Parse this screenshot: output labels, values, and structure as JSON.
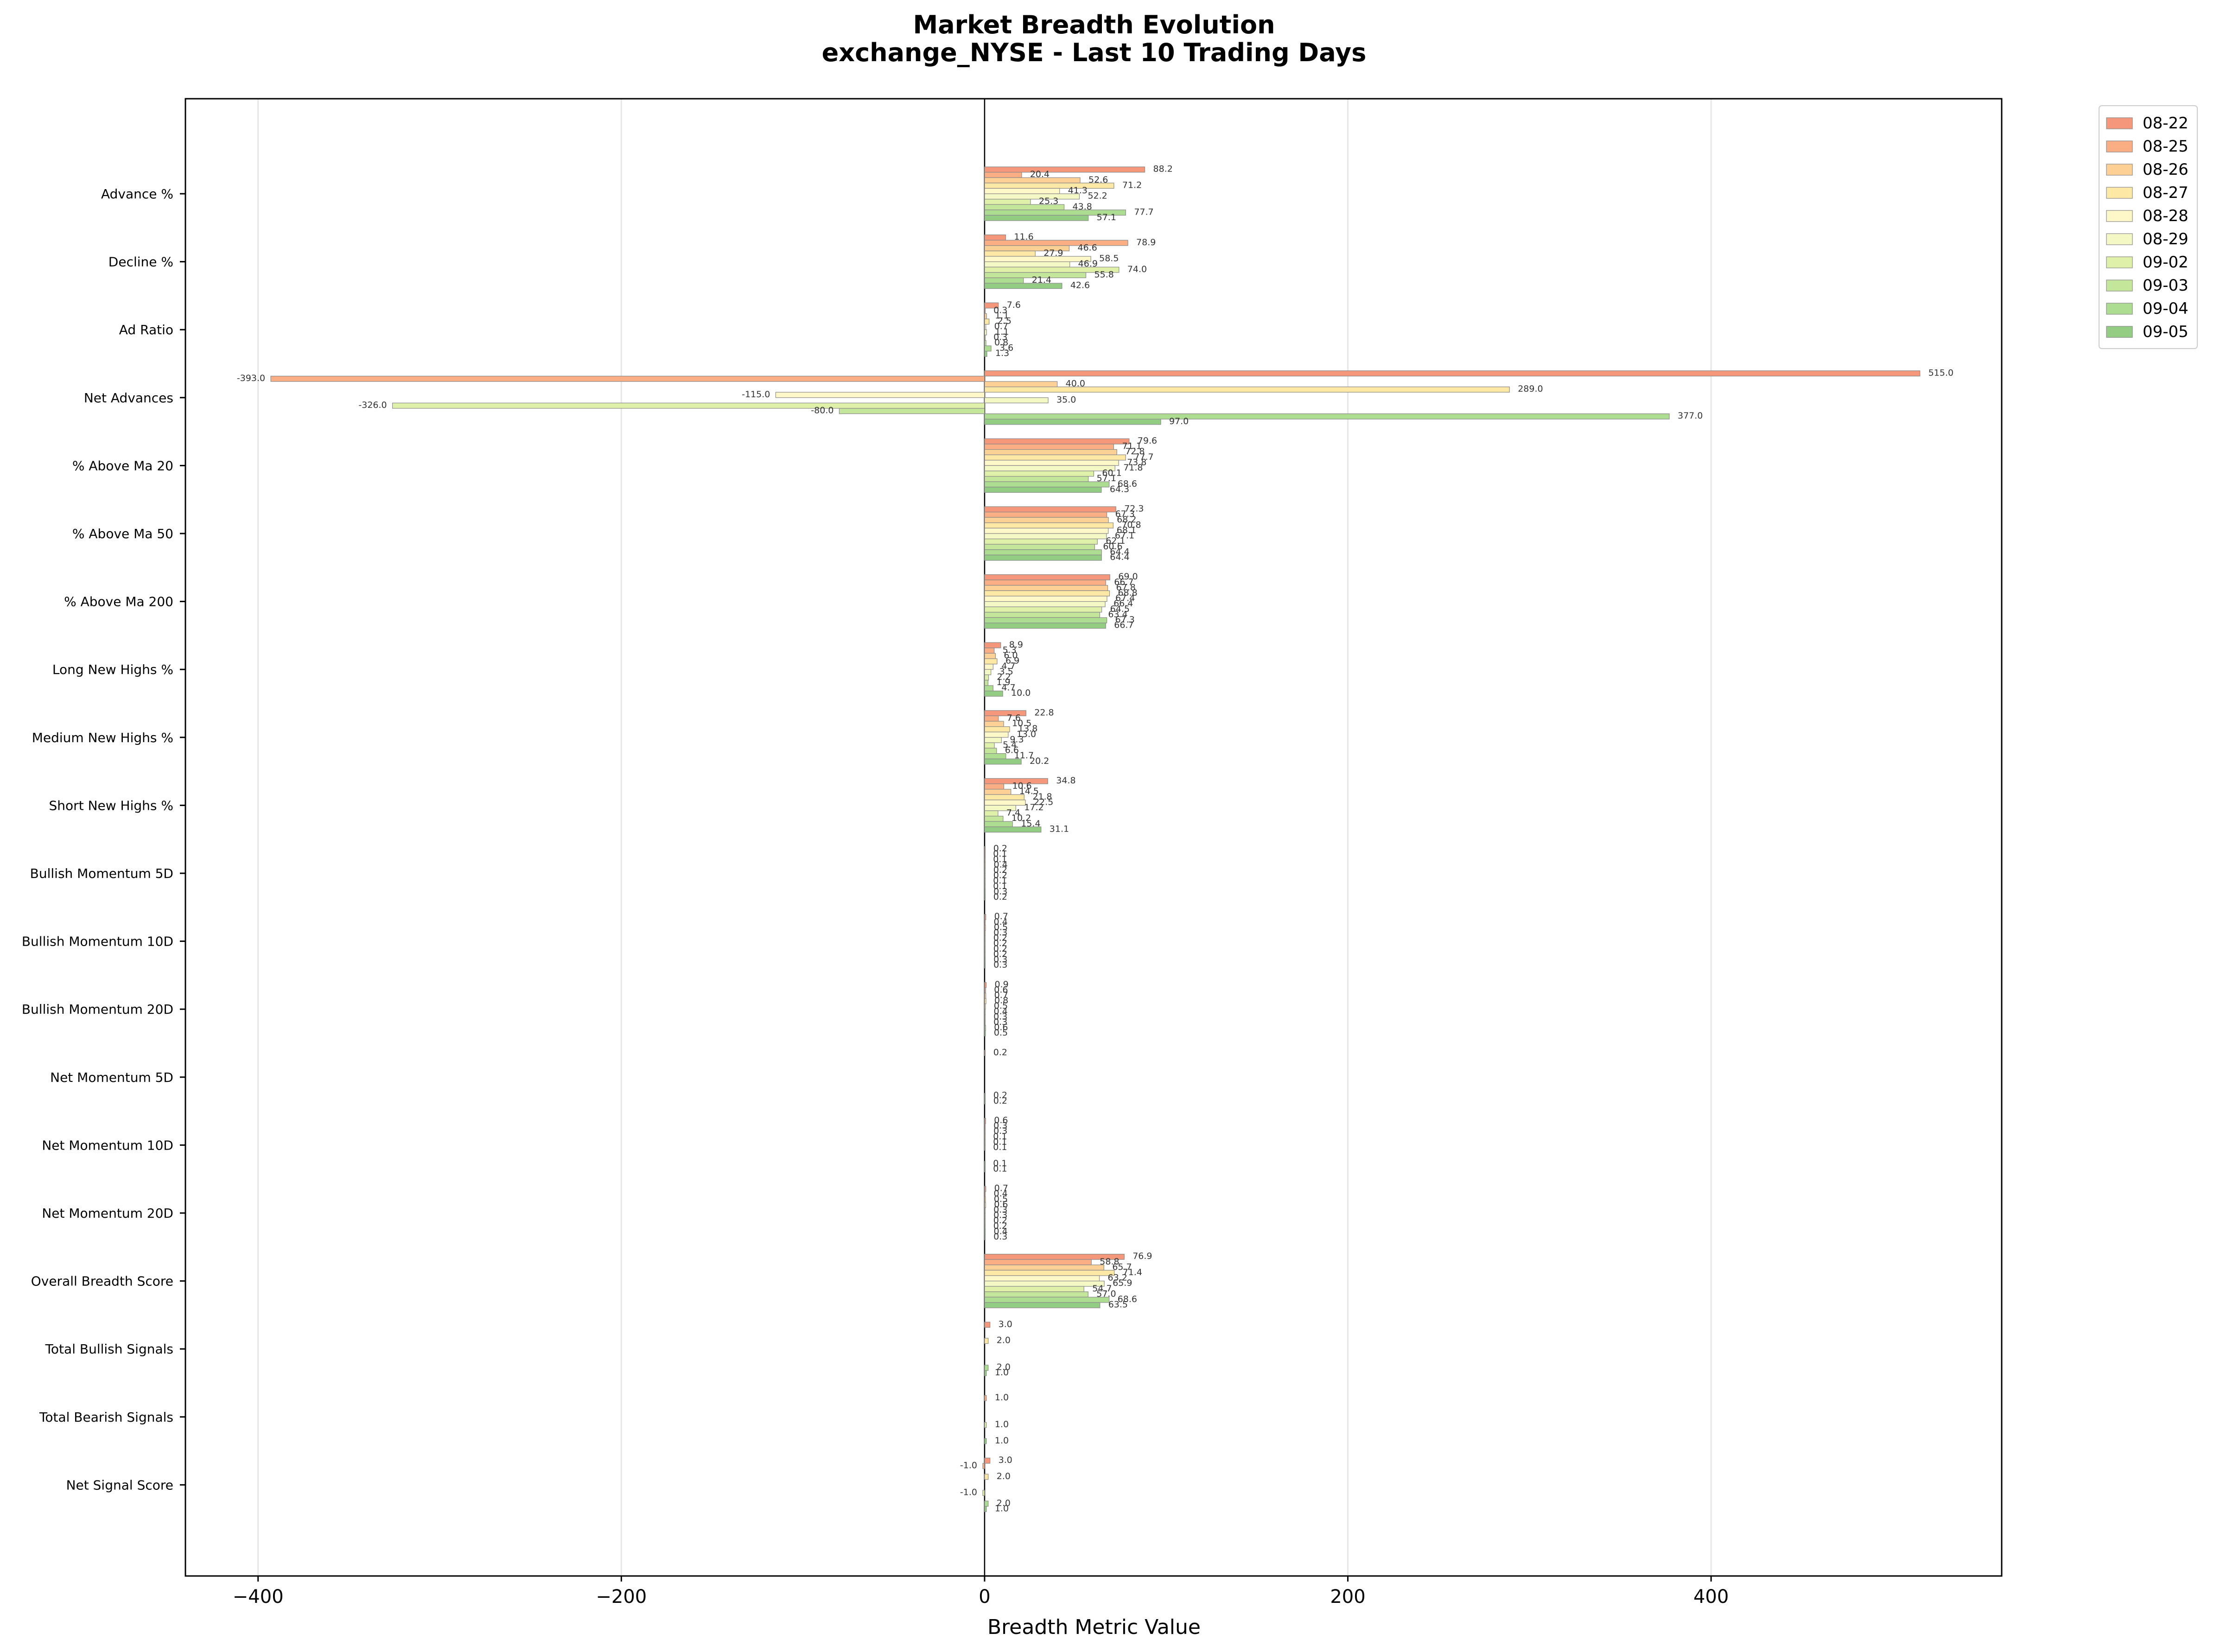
{
  "chart_data": {
    "type": "bar",
    "orientation": "horizontal",
    "title": "Market Breadth Evolution",
    "subtitle": "exchange_NYSE - Last 10 Trading Days",
    "xlabel": "Breadth Metric Value",
    "ylabel": "",
    "xlim": [
      -440,
      560
    ],
    "xticks": [
      -400,
      -200,
      0,
      200,
      400
    ],
    "grid": "x",
    "legend_position": "top-right-outside",
    "categories": [
      "Advance %",
      "Decline %",
      "Ad Ratio",
      "Net Advances",
      "% Above Ma 20",
      "% Above Ma 50",
      "% Above Ma 200",
      "Long New Highs %",
      "Medium New Highs %",
      "Short New Highs %",
      "Bullish Momentum 5D",
      "Bullish Momentum 10D",
      "Bullish Momentum 20D",
      "Net Momentum 5D",
      "Net Momentum 10D",
      "Net Momentum 20D",
      "Overall Breadth Score",
      "Total Bullish Signals",
      "Total Bearish Signals",
      "Net Signal Score"
    ],
    "series": [
      {
        "name": "08-22",
        "color": "#f4977a",
        "values": [
          88.2,
          11.6,
          7.6,
          515.0,
          79.6,
          72.3,
          69.0,
          8.9,
          22.8,
          34.8,
          0.2,
          0.7,
          0.9,
          0.2,
          0.6,
          0.7,
          76.9,
          3.0,
          0.0,
          3.0
        ]
      },
      {
        "name": "08-25",
        "color": "#fbad84",
        "values": [
          20.4,
          78.9,
          0.3,
          -393.0,
          71.1,
          67.3,
          66.7,
          5.3,
          7.6,
          10.6,
          0.1,
          0.4,
          0.6,
          0.0,
          0.3,
          0.4,
          58.8,
          0.0,
          1.0,
          -1.0
        ]
      },
      {
        "name": "08-26",
        "color": "#fdd195",
        "values": [
          52.6,
          46.6,
          1.1,
          40.0,
          72.8,
          68.2,
          67.8,
          6.0,
          10.5,
          14.5,
          0.1,
          0.5,
          0.7,
          0.0,
          0.3,
          0.5,
          65.7,
          0.0,
          0.0,
          0.0
        ]
      },
      {
        "name": "08-27",
        "color": "#fee8a5",
        "values": [
          71.2,
          27.9,
          2.5,
          289.0,
          77.7,
          70.8,
          68.8,
          6.9,
          13.8,
          21.8,
          0.4,
          0.3,
          0.8,
          0.0,
          0.1,
          0.6,
          71.4,
          2.0,
          0.0,
          2.0
        ]
      },
      {
        "name": "08-28",
        "color": "#fef7c8",
        "values": [
          41.3,
          58.5,
          0.7,
          -115.0,
          73.8,
          68.1,
          67.4,
          4.7,
          13.0,
          22.5,
          0.2,
          0.2,
          0.5,
          0.0,
          0.1,
          0.3,
          63.2,
          0.0,
          0.0,
          0.0
        ]
      },
      {
        "name": "08-29",
        "color": "#f3f8c4",
        "values": [
          52.2,
          46.9,
          1.1,
          35.0,
          71.8,
          67.1,
          66.4,
          3.5,
          9.3,
          17.2,
          0.2,
          0.2,
          0.4,
          0.0,
          0.1,
          0.3,
          65.9,
          0.0,
          0.0,
          0.0
        ]
      },
      {
        "name": "09-02",
        "color": "#dff1a8",
        "values": [
          25.3,
          74.0,
          0.3,
          -326.0,
          60.1,
          62.1,
          64.5,
          2.2,
          5.4,
          7.4,
          0.1,
          0.2,
          0.3,
          0.0,
          0.0,
          0.2,
          54.7,
          0.0,
          1.0,
          -1.0
        ]
      },
      {
        "name": "09-03",
        "color": "#c4e69a",
        "values": [
          43.8,
          55.8,
          0.8,
          -80.0,
          57.1,
          60.6,
          63.4,
          1.9,
          6.6,
          10.2,
          0.1,
          0.2,
          0.3,
          0.0,
          0.0,
          0.2,
          57.0,
          0.0,
          0.0,
          0.0
        ]
      },
      {
        "name": "09-04",
        "color": "#addd90",
        "values": [
          77.7,
          21.4,
          3.6,
          377.0,
          68.6,
          64.4,
          67.3,
          4.7,
          11.7,
          15.4,
          0.3,
          0.3,
          0.6,
          0.2,
          0.1,
          0.4,
          68.6,
          2.0,
          0.0,
          2.0
        ]
      },
      {
        "name": "09-05",
        "color": "#93cd84",
        "values": [
          57.1,
          42.6,
          1.3,
          97.0,
          64.3,
          64.4,
          66.7,
          10.0,
          20.2,
          31.1,
          0.2,
          0.3,
          0.5,
          0.2,
          0.1,
          0.3,
          63.5,
          1.0,
          1.0,
          1.0
        ]
      }
    ]
  }
}
